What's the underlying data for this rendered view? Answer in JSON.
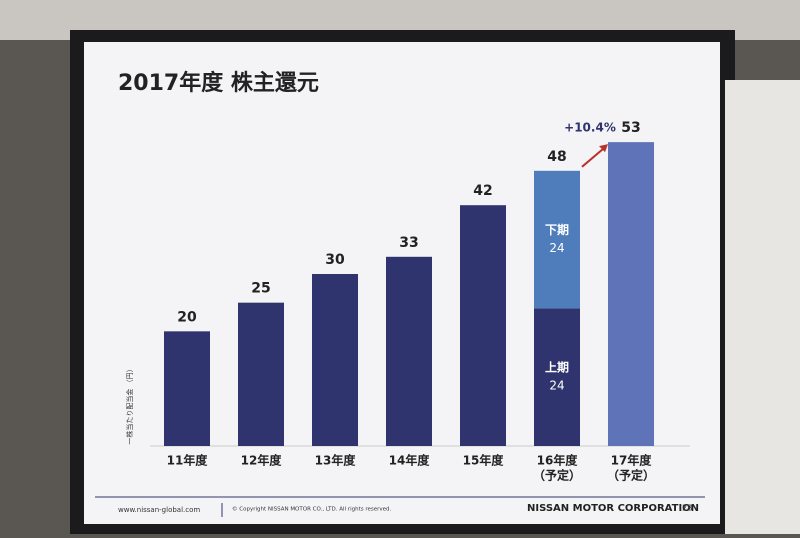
{
  "chart_data": {
    "type": "bar",
    "stacked": true,
    "title": "2017年度 株主還元",
    "y_label": "一株当たり配当金 （円）",
    "categories": [
      [
        "11年度"
      ],
      [
        "12年度"
      ],
      [
        "13年度"
      ],
      [
        "14年度"
      ],
      [
        "15年度"
      ],
      [
        "16年度",
        "（予定）"
      ],
      [
        "17年度",
        "（予定）"
      ]
    ],
    "series": [
      {
        "name": "上期",
        "color": "#2f346f",
        "values": [
          20,
          25,
          30,
          33,
          42,
          24,
          null
        ]
      },
      {
        "name": "下期",
        "color": "#4f7dbb",
        "values": [
          null,
          null,
          null,
          null,
          null,
          24,
          null
        ]
      },
      {
        "color": "#5f74b8",
        "values": [
          null,
          null,
          null,
          null,
          null,
          null,
          53
        ]
      }
    ],
    "totals": [
      20,
      25,
      30,
      33,
      42,
      48,
      53
    ],
    "annotation": "+10.4%",
    "ylim": [
      0,
      60
    ],
    "footer": {
      "url": "www.nissan-global.com",
      "copyright": "© Copyright NISSAN MOTOR CO., LTD. All rights reserved.",
      "company": "NISSAN MOTOR CORPORATION",
      "page": "28"
    }
  }
}
